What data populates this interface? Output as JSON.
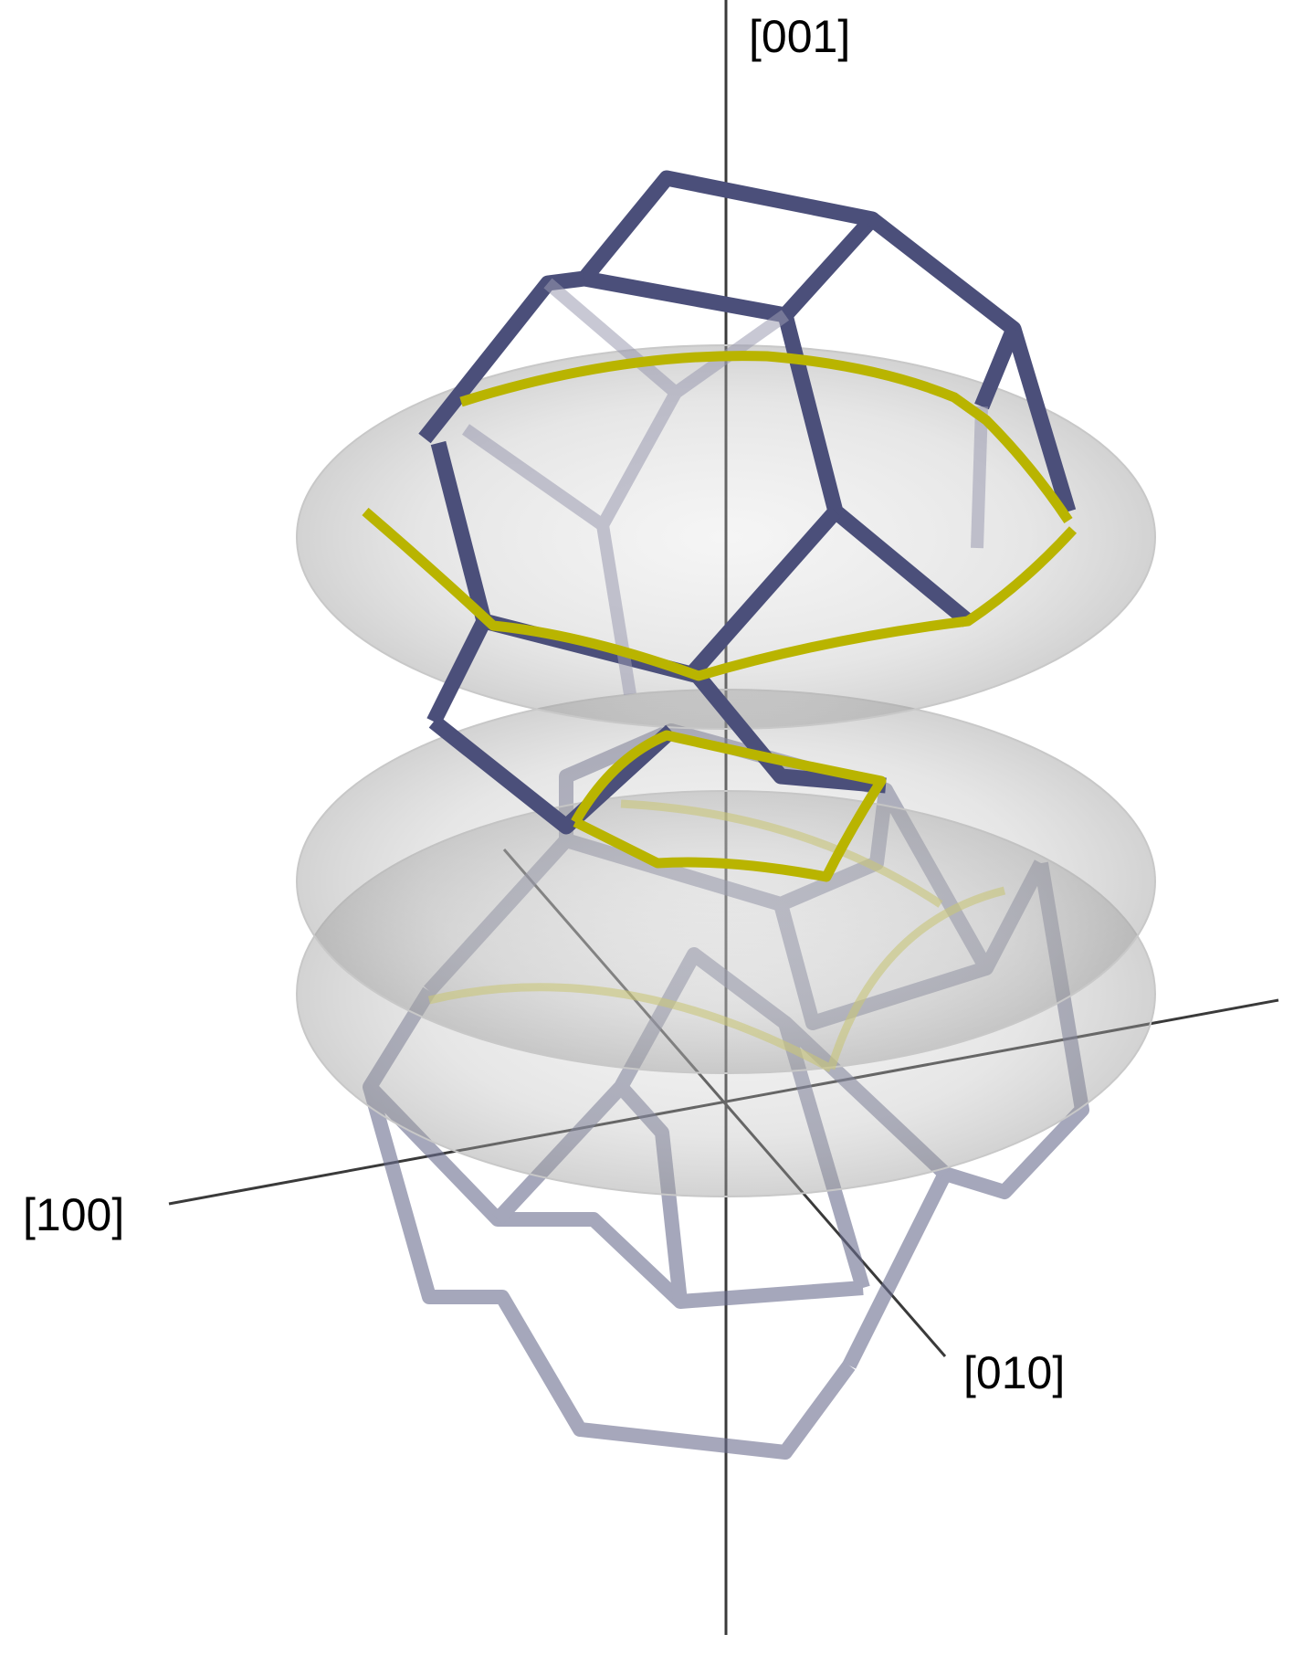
{
  "axes": {
    "z_label": "[001]",
    "x_label": "[100]",
    "y_label": "[010]"
  },
  "colors": {
    "axis_line": "#3a3a3a",
    "brillouin_zone_edge": "#4b4f7a",
    "fermi_contour": "#b9b400",
    "fermi_disk": "#9a9a9a"
  },
  "figure": {
    "shape": "truncated-octahedron",
    "zone_count": 2,
    "disk_count": 3
  }
}
